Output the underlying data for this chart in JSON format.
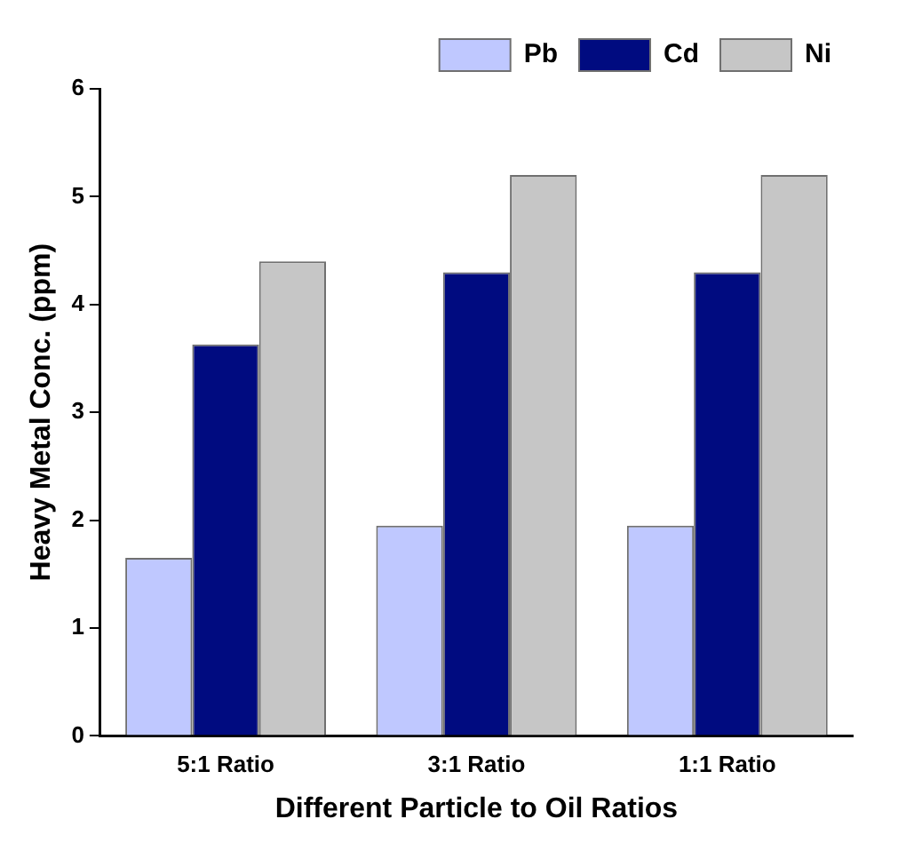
{
  "chart_data": {
    "type": "bar",
    "xlabel": "Different Particle to Oil Ratios",
    "ylabel": "Heavy Metal Conc. (ppm)",
    "categories": [
      "5:1 Ratio",
      "3:1 Ratio",
      "1:1 Ratio"
    ],
    "series": [
      {
        "name": "Pb",
        "color": "#bfc8ff",
        "values": [
          1.65,
          1.95,
          1.95
        ]
      },
      {
        "name": "Cd",
        "color": "#000b80",
        "values": [
          3.63,
          4.3,
          4.3
        ]
      },
      {
        "name": "Ni",
        "color": "#c6c6c6",
        "values": [
          4.4,
          5.2,
          5.2
        ]
      }
    ],
    "ylim": [
      0,
      6
    ],
    "yticks": [
      0,
      1,
      2,
      3,
      4,
      5,
      6
    ],
    "grid": false,
    "legend": "top right"
  }
}
